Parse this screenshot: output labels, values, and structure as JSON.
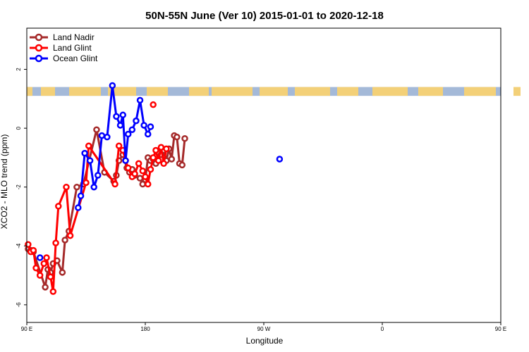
{
  "chart_data": {
    "type": "line",
    "title": "50N-55N June (Ver 10)   2015-01-01 to 2020-12-18",
    "xlabel": "Longitude",
    "ylabel": "XCO2 - MLO trend (ppm)",
    "xlim": [
      90,
      450
    ],
    "ylim": [
      -6.6,
      3.4
    ],
    "x_ticks": [
      {
        "value": 90,
        "label": "90 E"
      },
      {
        "value": 180,
        "label": "180"
      },
      {
        "value": 270,
        "label": "90 W"
      },
      {
        "value": 360,
        "label": "0"
      },
      {
        "value": 450,
        "label": "90 E"
      },
      {
        "value": 540,
        "label": "180"
      }
    ],
    "y_ticks": [
      {
        "value": -6,
        "label": "-6"
      },
      {
        "value": -4,
        "label": "-4"
      },
      {
        "value": -2,
        "label": "-2"
      },
      {
        "value": 0,
        "label": "0"
      },
      {
        "value": 2,
        "label": "2"
      }
    ],
    "x_period": 360,
    "landmask_band": {
      "y_top": 1.4,
      "y_bottom": 1.1,
      "land_color": "#f3d078",
      "ocean_color": "#a4b9d8"
    },
    "legend_position": "top-left",
    "series": [
      {
        "name": "Land Nadir",
        "color": "#a52a2a",
        "points": [
          [
            91,
            -4.1
          ],
          [
            93,
            -4.15
          ],
          [
            95,
            -4.2
          ],
          [
            104,
            -5.4
          ],
          [
            106,
            -4.8
          ],
          [
            108,
            -4.9
          ],
          [
            110,
            -4.6
          ],
          [
            113,
            -4.5
          ],
          [
            117,
            -4.9
          ],
          [
            119,
            -3.8
          ],
          [
            122,
            -3.5
          ],
          [
            128,
            -2.0
          ],
          [
            133,
            -1.9
          ],
          [
            143,
            -0.05
          ],
          [
            149,
            -1.5
          ],
          [
            156,
            -1.8
          ],
          [
            158,
            -1.6
          ],
          [
            160,
            -1.1
          ],
          [
            163,
            -0.9
          ],
          [
            166,
            -1.35
          ],
          [
            168,
            -1.5
          ],
          [
            170,
            -1.4
          ],
          [
            172,
            -1.6
          ],
          [
            176,
            -1.7
          ],
          [
            178,
            -1.9
          ],
          [
            180,
            -1.75
          ],
          [
            182,
            -1.0
          ],
          [
            184,
            -1.1
          ],
          [
            186,
            -1.05
          ],
          [
            188,
            -1.2
          ],
          [
            190,
            -0.85
          ],
          [
            192,
            -0.9
          ],
          [
            194,
            -0.75
          ],
          [
            196,
            -1.1
          ],
          [
            198,
            -0.7
          ],
          [
            200,
            -1.05
          ],
          [
            202,
            -0.25
          ],
          [
            204,
            -0.3
          ],
          [
            206,
            -1.2
          ],
          [
            208,
            -1.25
          ],
          [
            210,
            -0.35
          ]
        ]
      },
      {
        "name": "Land Glint",
        "color": "#ff0000",
        "points": [
          [
            91,
            -3.95
          ],
          [
            93,
            -4.2
          ],
          [
            95,
            -4.15
          ],
          [
            97,
            -4.75
          ],
          [
            100,
            -5.0
          ],
          [
            103,
            -4.6
          ],
          [
            105,
            -4.4
          ],
          [
            108,
            -5.05
          ],
          [
            110,
            -5.55
          ],
          [
            112,
            -3.9
          ],
          [
            114,
            -2.65
          ],
          [
            120,
            -2.0
          ],
          [
            123,
            -3.65
          ],
          [
            135,
            -1.85
          ],
          [
            137,
            -0.6
          ],
          [
            157,
            -1.9
          ],
          [
            160,
            -0.6
          ],
          [
            163,
            -0.75
          ],
          [
            165,
            -1.1
          ],
          [
            167,
            -1.35
          ],
          [
            170,
            -1.65
          ],
          [
            172,
            -1.55
          ],
          [
            175,
            -1.2
          ],
          [
            178,
            -1.45
          ],
          [
            180,
            -1.65
          ],
          [
            182,
            -1.9
          ],
          [
            184,
            -1.4
          ],
          [
            186,
            -1.0
          ],
          [
            188,
            -0.75
          ],
          [
            190,
            -1.1
          ],
          [
            192,
            -0.65
          ],
          [
            194,
            -1.2
          ],
          [
            196,
            -0.7
          ]
        ]
      },
      {
        "name": "Ocean Glint",
        "color": "#0000ff",
        "points": [
          [
            129,
            -2.7
          ],
          [
            131,
            -2.3
          ],
          [
            134,
            -0.85
          ],
          [
            138,
            -1.1
          ],
          [
            141,
            -2.0
          ],
          [
            144,
            -1.6
          ],
          [
            147,
            -0.25
          ],
          [
            151,
            -0.3
          ],
          [
            155,
            1.45
          ],
          [
            158,
            0.4
          ],
          [
            161,
            0.1
          ],
          [
            163,
            0.45
          ],
          [
            165,
            -1.1
          ],
          [
            167,
            -0.2
          ],
          [
            170,
            -0.05
          ],
          [
            173,
            0.25
          ],
          [
            176,
            0.95
          ],
          [
            179,
            0.1
          ],
          [
            182,
            -0.2
          ],
          [
            184,
            0.05
          ]
        ]
      }
    ],
    "single_points": [
      {
        "series": "Land Glint",
        "x": 186,
        "y": 0.8
      },
      {
        "series": "Ocean Glint",
        "x": 100,
        "y": -4.4
      },
      {
        "series": "Ocean Glint",
        "x": 282,
        "y": -1.05
      }
    ]
  }
}
